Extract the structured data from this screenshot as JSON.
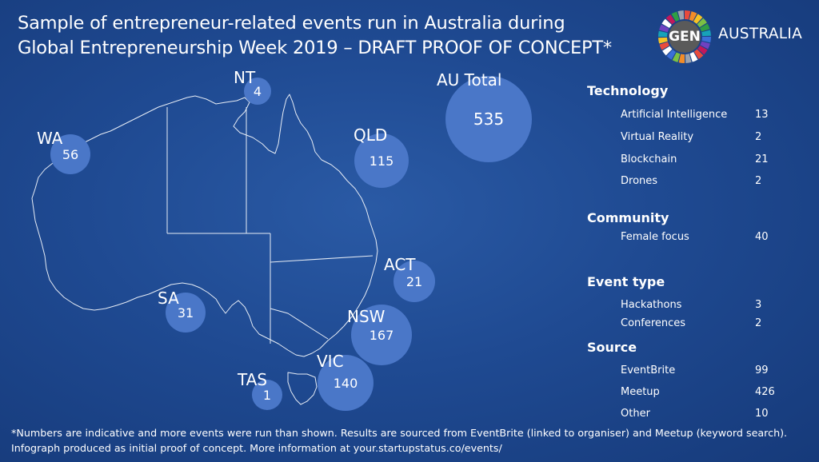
{
  "title": {
    "line1": "Sample of entrepreneur-related events run in Australia during",
    "line2": "Global Entrepreneurship Week 2019 – DRAFT PROOF OF CONCEPT*"
  },
  "logo": {
    "mark_text": "GEN",
    "country": "AUSTRALIA"
  },
  "colors": {
    "bubble": "#4a77c8",
    "map_outline": "#e6ecf5",
    "background": "#1f4a92"
  },
  "bubbles": [
    {
      "region": "NT",
      "value": "4"
    },
    {
      "region": "AU Total",
      "value": "535"
    },
    {
      "region": "WA",
      "value": "56"
    },
    {
      "region": "QLD",
      "value": "115"
    },
    {
      "region": "ACT",
      "value": "21"
    },
    {
      "region": "SA",
      "value": "31"
    },
    {
      "region": "NSW",
      "value": "167"
    },
    {
      "region": "VIC",
      "value": "140"
    },
    {
      "region": "TAS",
      "value": "1"
    }
  ],
  "sections": [
    {
      "title": "Technology",
      "rows": [
        {
          "label": "Artificial Intelligence",
          "value": "13"
        },
        {
          "label": "Virtual Reality",
          "value": "2"
        },
        {
          "label": "Blockchain",
          "value": "21"
        },
        {
          "label": "Drones",
          "value": "2"
        }
      ]
    },
    {
      "title": "Community",
      "rows": [
        {
          "label": "Female focus",
          "value": "40"
        }
      ]
    },
    {
      "title": "Event type",
      "rows": [
        {
          "label": "Hackathons",
          "value": "3"
        },
        {
          "label": "Conferences",
          "value": "2"
        }
      ]
    },
    {
      "title": "Source",
      "rows": [
        {
          "label": "EventBrite",
          "value": "99"
        },
        {
          "label": "Meetup",
          "value": "426"
        },
        {
          "label": "Other",
          "value": "10"
        }
      ]
    }
  ],
  "footnote": {
    "line1": "*Numbers are indicative and more events were run than shown. Results are sourced from EventBrite (linked to organiser) and Meetup (keyword search).",
    "line2": "Infograph produced as initial proof of concept. More information at your.startupstatus.co/events/"
  }
}
